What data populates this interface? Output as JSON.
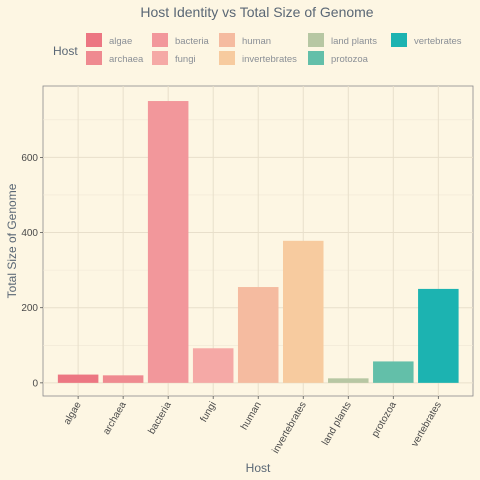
{
  "chart_data": {
    "type": "bar",
    "title": "Host Identity vs Total Size of Genome",
    "xlabel": "Host",
    "ylabel": "Total Size of Genome",
    "legend_title": "Host",
    "legend_position": "top",
    "categories": [
      "algae",
      "archaea",
      "bacteria",
      "fungi",
      "human",
      "invertebrates",
      "land plants",
      "protozoa",
      "vertebrates"
    ],
    "values": [
      22,
      20,
      750,
      92,
      255,
      378,
      12,
      57,
      250
    ],
    "colors": [
      "#ec7682",
      "#ef8a90",
      "#f2979b",
      "#f5a9a6",
      "#f5bba0",
      "#f7cb9f",
      "#b7c7a3",
      "#63bfa9",
      "#1cb3b1"
    ],
    "ylim": [
      -35,
      790
    ],
    "yticks": [
      0,
      200,
      400,
      600
    ],
    "grid": true
  }
}
